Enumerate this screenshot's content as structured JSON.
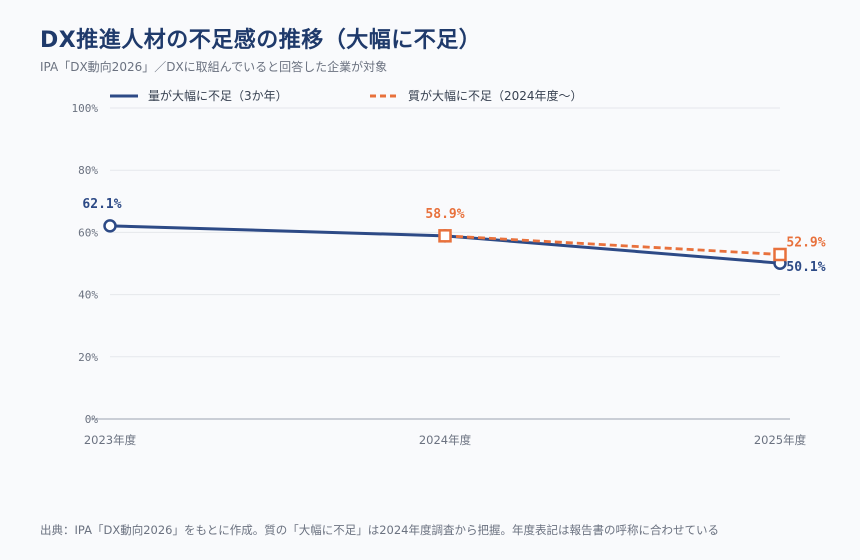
{
  "title": "DX推進人材の不足感の推移（大幅に不足）",
  "subtitle": "IPA「DX動向2026」／DXに取組んでいると回答した企業が対象",
  "footer": "出典：IPA「DX動向2026」をもとに作成。質の「大幅に不足」は2024年度調査から把握。年度表記は報告書の呼称に合わせている",
  "colors": {
    "quantity": "#2d4a86",
    "quality": "#e8713c",
    "grid": "#e5e7eb",
    "axis": "#9ca3af"
  },
  "chart_data": {
    "type": "line",
    "categories": [
      "2023年度",
      "2024年度",
      "2025年度"
    ],
    "y_ticks": [
      "0%",
      "20%",
      "40%",
      "60%",
      "80%",
      "100%"
    ],
    "ylim": [
      0,
      100
    ],
    "grid": true,
    "legend_position": "top",
    "series": [
      {
        "name": "量が大幅に不足（3か年）",
        "values": [
          62.1,
          58.9,
          50.1
        ],
        "labels": [
          "62.1%",
          "",
          "50.1%"
        ],
        "style": "solid",
        "marker": "circle"
      },
      {
        "name": "質が大幅に不足（2024年度～）",
        "values": [
          null,
          58.9,
          52.9
        ],
        "labels": [
          "",
          "58.9%",
          "52.9%"
        ],
        "style": "dashed",
        "marker": "square"
      }
    ]
  }
}
